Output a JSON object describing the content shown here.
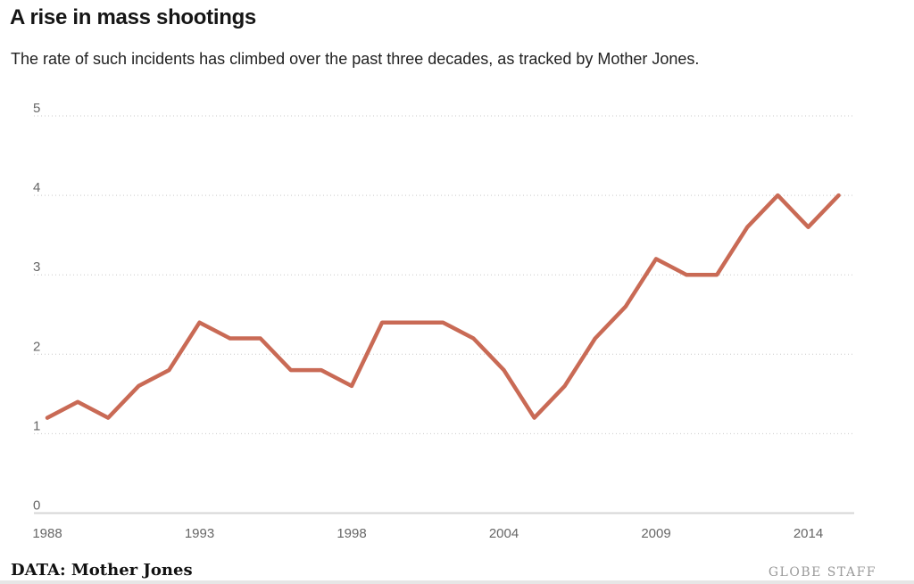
{
  "header": {
    "title": "A rise in mass shootings",
    "subtitle": "The rate of such incidents has climbed over the past three decades, as tracked by Mother Jones."
  },
  "footer": {
    "source": "DATA: Mother Jones",
    "credit": "GLOBE STAFF"
  },
  "colors": {
    "line": "#c96a55",
    "grid": "#c9c9c9",
    "axis": "#d6d6d6",
    "tick_label": "#666666",
    "title_text": "#151515",
    "subtitle_text": "#222222",
    "source_text": "#111111",
    "credit_text": "#9a9a9a",
    "bottom_strip": "#e6e6e6",
    "background": "#ffffff"
  },
  "chart_data": {
    "type": "line",
    "title": "A rise in mass shootings",
    "subtitle": "The rate of such incidents has climbed over the past three decades, as tracked by Mother Jones.",
    "x": [
      1988,
      1989,
      1990,
      1991,
      1992,
      1993,
      1994,
      1995,
      1996,
      1997,
      1998,
      1999,
      2000,
      2001,
      2003,
      2004,
      2005,
      2006,
      2007,
      2008,
      2009,
      2010,
      2011,
      2012,
      2013,
      2014,
      2015
    ],
    "values": [
      1.2,
      1.4,
      1.2,
      1.6,
      1.8,
      2.4,
      2.2,
      2.2,
      1.8,
      1.8,
      1.6,
      2.4,
      2.4,
      2.4,
      2.2,
      1.8,
      1.2,
      1.6,
      2.2,
      2.6,
      3.2,
      3.0,
      3.0,
      3.6,
      4.0,
      3.6,
      4.0
    ],
    "x_tick_labels": [
      "1988",
      "1993",
      "1998",
      "2004",
      "2009",
      "2014"
    ],
    "y_ticks": [
      0,
      1,
      2,
      3,
      4,
      5
    ],
    "ylim": [
      0,
      5
    ],
    "xlabel": "",
    "ylabel": "",
    "legend": "none",
    "grid": "horizontal dotted, solid baseline at 0"
  }
}
